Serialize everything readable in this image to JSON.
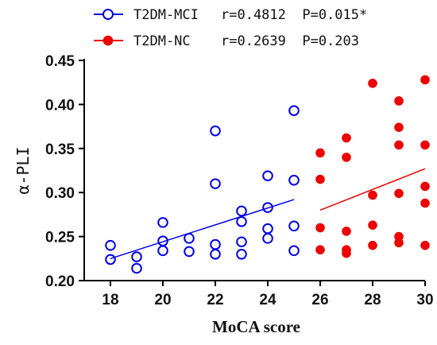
{
  "chart_data": {
    "type": "scatter",
    "xlabel": "MoCA score",
    "ylabel": "α-PLI",
    "xlim": [
      17,
      30
    ],
    "ylim": [
      0.2,
      0.45
    ],
    "x_ticks": [
      "18",
      "20",
      "22",
      "24",
      "26",
      "28",
      "30"
    ],
    "y_ticks": [
      "0.20",
      "0.25",
      "0.30",
      "0.35",
      "0.40",
      "0.45"
    ],
    "legend_position": "top",
    "series": [
      {
        "name": "T2DM-MCI",
        "stats": "r=0.4812  P=0.015*",
        "color": "#0000ee",
        "marker": "open-circle",
        "points": [
          [
            18,
            0.24
          ],
          [
            18,
            0.224
          ],
          [
            19,
            0.227
          ],
          [
            19,
            0.214
          ],
          [
            20,
            0.266
          ],
          [
            20,
            0.245
          ],
          [
            20,
            0.234
          ],
          [
            21,
            0.248
          ],
          [
            21,
            0.233
          ],
          [
            22,
            0.37
          ],
          [
            22,
            0.31
          ],
          [
            22,
            0.241
          ],
          [
            22,
            0.23
          ],
          [
            23,
            0.279
          ],
          [
            23,
            0.267
          ],
          [
            23,
            0.244
          ],
          [
            23,
            0.23
          ],
          [
            24,
            0.319
          ],
          [
            24,
            0.283
          ],
          [
            24,
            0.259
          ],
          [
            24,
            0.248
          ],
          [
            25,
            0.393
          ],
          [
            25,
            0.314
          ],
          [
            25,
            0.262
          ],
          [
            25,
            0.234
          ]
        ],
        "fit_line": [
          [
            18,
            0.225
          ],
          [
            25,
            0.292
          ]
        ]
      },
      {
        "name": "T2DM-NC",
        "stats": "r=0.2639  P=0.203",
        "color": "#ee0000",
        "marker": "filled-circle",
        "points": [
          [
            26,
            0.345
          ],
          [
            26,
            0.315
          ],
          [
            26,
            0.26
          ],
          [
            26,
            0.235
          ],
          [
            27,
            0.362
          ],
          [
            27,
            0.34
          ],
          [
            27,
            0.256
          ],
          [
            27,
            0.235
          ],
          [
            27,
            0.231
          ],
          [
            28,
            0.424
          ],
          [
            28,
            0.297
          ],
          [
            28,
            0.263
          ],
          [
            28,
            0.24
          ],
          [
            29,
            0.404
          ],
          [
            29,
            0.374
          ],
          [
            29,
            0.354
          ],
          [
            29,
            0.299
          ],
          [
            29,
            0.25
          ],
          [
            29,
            0.243
          ],
          [
            30,
            0.428
          ],
          [
            30,
            0.354
          ],
          [
            30,
            0.307
          ],
          [
            30,
            0.288
          ],
          [
            30,
            0.24
          ]
        ],
        "fit_line": [
          [
            26,
            0.28
          ],
          [
            30,
            0.327
          ]
        ]
      }
    ]
  }
}
